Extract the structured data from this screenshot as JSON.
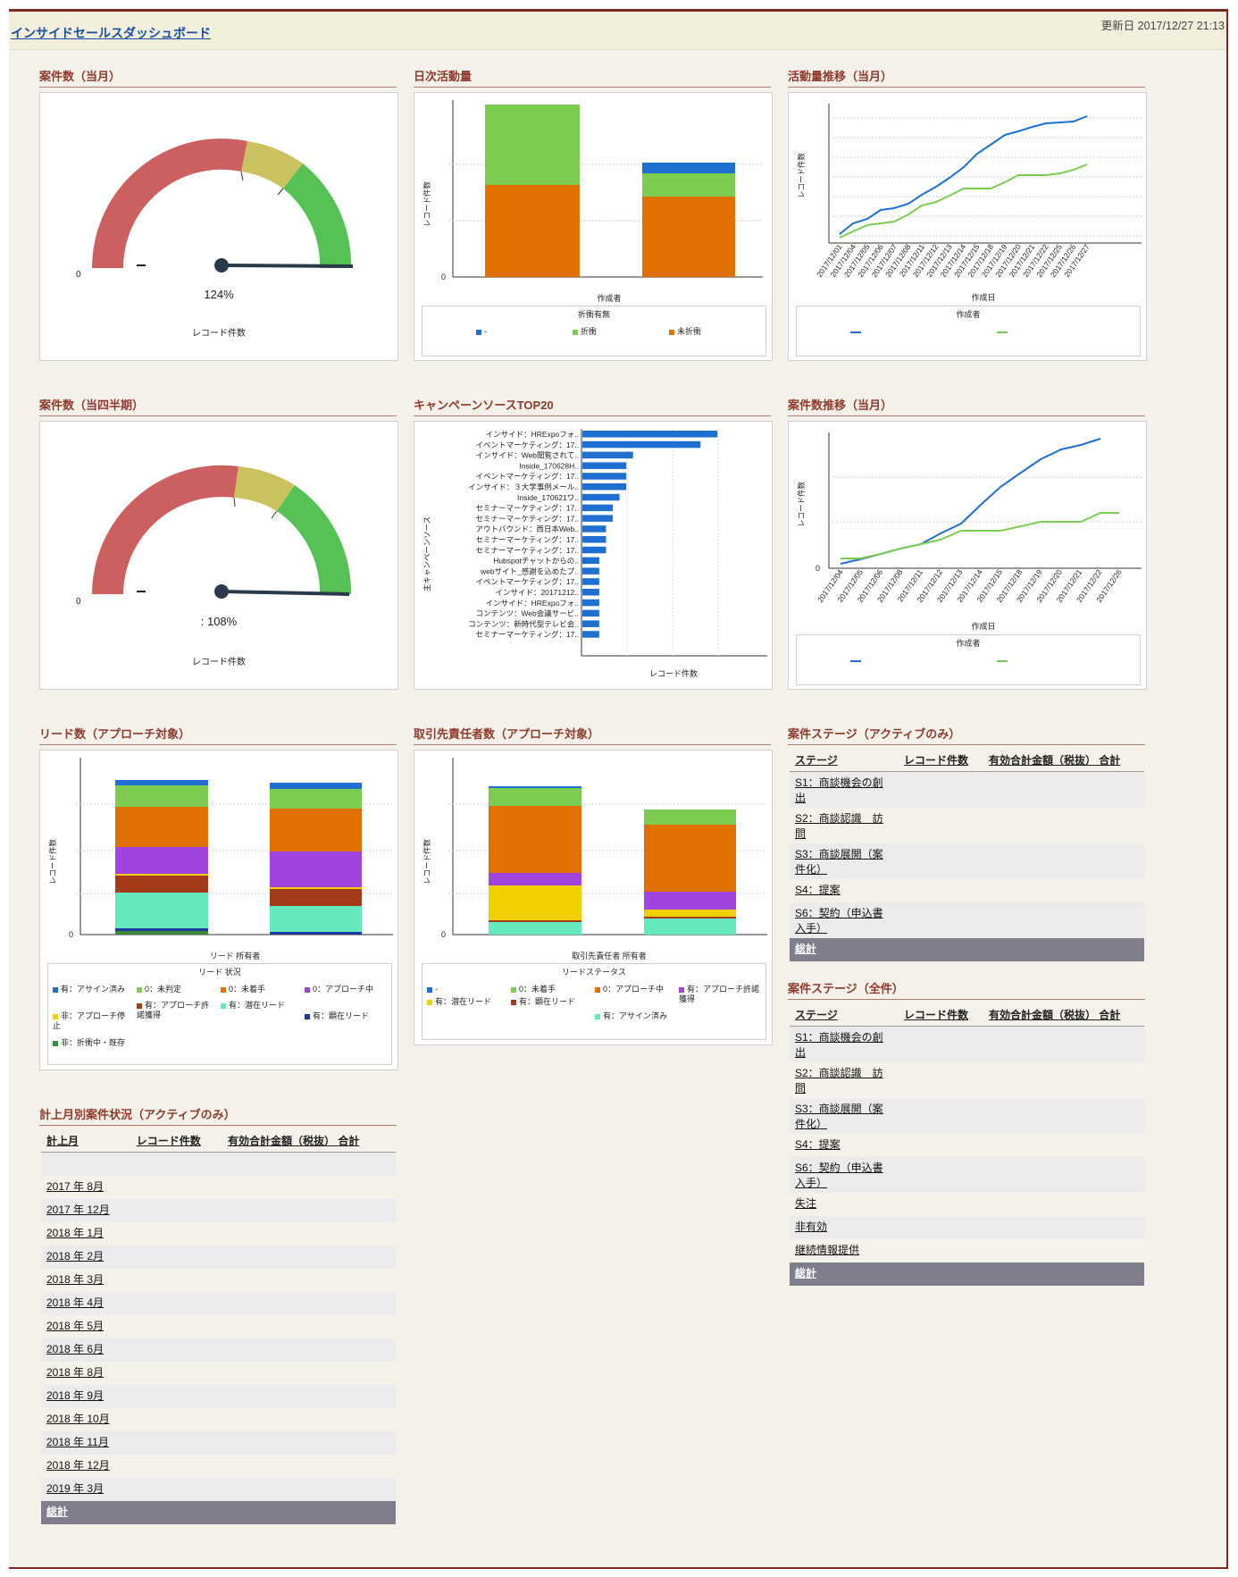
{
  "header": {
    "title": "インサイドセールスダッシュボード",
    "updated": "更新日 2017/12/27 21:13"
  },
  "gauge1": {
    "title": "案件数（当月）",
    "min_label": "0",
    "percent_label": "124%",
    "footer": "レコード件数",
    "value_percent": 124
  },
  "gauge2": {
    "title": "案件数（当四半期）",
    "min_label": "0",
    "percent_label": ": 108%",
    "footer": "レコード件数",
    "value_percent": 108
  },
  "daily": {
    "title": "日次活動量",
    "ylabel": "レコード件数",
    "xlabel": "作成者",
    "zero": "0",
    "legend_title": "折衝有無",
    "legend": [
      "-",
      "折衝",
      "未折衝"
    ],
    "colors": {
      "dash": "#1f6fd0",
      "green": "#7ccc52",
      "orange": "#e07000"
    }
  },
  "trend1": {
    "title": "活動量推移（当月）",
    "ylabel": "レコード件数",
    "xlabel": "作成日",
    "legend_title": "作成者",
    "dates": [
      "2017/12/01",
      "2017/12/04",
      "2017/12/05",
      "2017/12/06",
      "2017/12/07",
      "2017/12/08",
      "2017/12/11",
      "2017/12/12",
      "2017/12/13",
      "2017/12/14",
      "2017/12/15",
      "2017/12/18",
      "2017/12/19",
      "2017/12/20",
      "2017/12/21",
      "2017/12/22",
      "2017/12/25",
      "2017/12/26",
      "2017/12/27"
    ]
  },
  "campaign": {
    "title": "キャンペーンソースTOP20",
    "ylabel": "主キャンペーンソース",
    "xlabel": "レコード件数",
    "items": [
      "インサイド：HRExpoフォ..",
      "イベントマーケティング：17..",
      "インサイド：Web閲覧されて..",
      "Inside_170628H..",
      "イベントマーケティング：17..",
      "インサイド：３大学事例メール..",
      "Inside_170621ワ..",
      "セミナーマーケティング：17..",
      "セミナーマーケティング：17..",
      "アウトバウンド：西日本Web..",
      "セミナーマーケティング：17..",
      "セミナーマーケティング：17..",
      "Hubspotチャットからの..",
      "webサイト_感謝を込めたプ..",
      "イベントマーケティング：17..",
      "インサイド：20171212..",
      "インサイド：HRExpoフォ..",
      "コンテンツ：Web会議サービ..",
      "コンテンツ：新時代型テレビ会..",
      "セミナーマーケティング：17.."
    ],
    "values": [
      40,
      35,
      15,
      13,
      13,
      13,
      11,
      9,
      9,
      7,
      7,
      7,
      5,
      5,
      5,
      5,
      5,
      5,
      5,
      5
    ]
  },
  "trend2": {
    "title": "案件数推移（当月）",
    "ylabel": "レコード件数",
    "xlabel": "作成日",
    "legend_title": "作成者",
    "zero": "0",
    "dates": [
      "2017/12/04",
      "2017/12/05",
      "2017/12/06",
      "2017/12/08",
      "2017/12/11",
      "2017/12/12",
      "2017/12/13",
      "2017/12/14",
      "2017/12/15",
      "2017/12/18",
      "2017/12/19",
      "2017/12/20",
      "2017/12/21",
      "2017/12/22",
      "2017/12/26"
    ]
  },
  "leads": {
    "title": "リード数（アプローチ対象）",
    "ylabel": "レコード件数",
    "xlabel": "リード 所有者",
    "zero": "0",
    "legend_title": "リード 状況",
    "legend": [
      "有：アサイン済み",
      "0：未判定",
      "0：未着手",
      "0：アプローチ中",
      "非：アプローチ停止",
      "有：アプローチ許諾獲得",
      "有：潜在リード",
      "有：顕在リード",
      "非：折衝中・既存"
    ]
  },
  "contacts": {
    "title": "取引先責任者数（アプローチ対象）",
    "ylabel": "レコード件数",
    "xlabel": "取引先責任者 所有者",
    "zero": "0",
    "legend_title": "リードステータス",
    "legend": [
      "-",
      "0：未着手",
      "0：アプローチ中",
      "有：アプローチ許諾獲得",
      "有：潜在リード",
      "有：顕在リード",
      "有：アサイン済み"
    ]
  },
  "stage_active": {
    "title": "案件ステージ（アクティブのみ）",
    "headers": [
      "ステージ",
      "レコード件数",
      "有効合計金額（税抜） 合計"
    ],
    "rows": [
      "S1：商談機会の創出",
      "S2：商談認識　訪問",
      "S3：商談展開（案件化）",
      "S4：提案",
      "S6：契約（申込書入手）"
    ],
    "total": "総計"
  },
  "stage_all": {
    "title": "案件ステージ（全件）",
    "headers": [
      "ステージ",
      "レコード件数",
      "有効合計金額（税抜） 合計"
    ],
    "rows": [
      "S1：商談機会の創出",
      "S2：商談認識　訪問",
      "S3：商談展開（案件化）",
      "S4：提案",
      "S6：契約（申込書入手）",
      "失注",
      "非有効",
      "継続情報提供"
    ],
    "total": "総計"
  },
  "monthly": {
    "title": "計上月別案件状況（アクティブのみ）",
    "headers": [
      "計上月",
      "レコード件数",
      "有効合計金額（税抜） 合計"
    ],
    "rows": [
      "",
      "2017 年 8月",
      "2017 年 12月",
      "2018 年 1月",
      "2018 年 2月",
      "2018 年 3月",
      "2018 年 4月",
      "2018 年 5月",
      "2018 年 6月",
      "2018 年 8月",
      "2018 年 9月",
      "2018 年 10月",
      "2018 年 11月",
      "2018 年 12月",
      "2019 年 3月"
    ],
    "total": "総計"
  }
}
